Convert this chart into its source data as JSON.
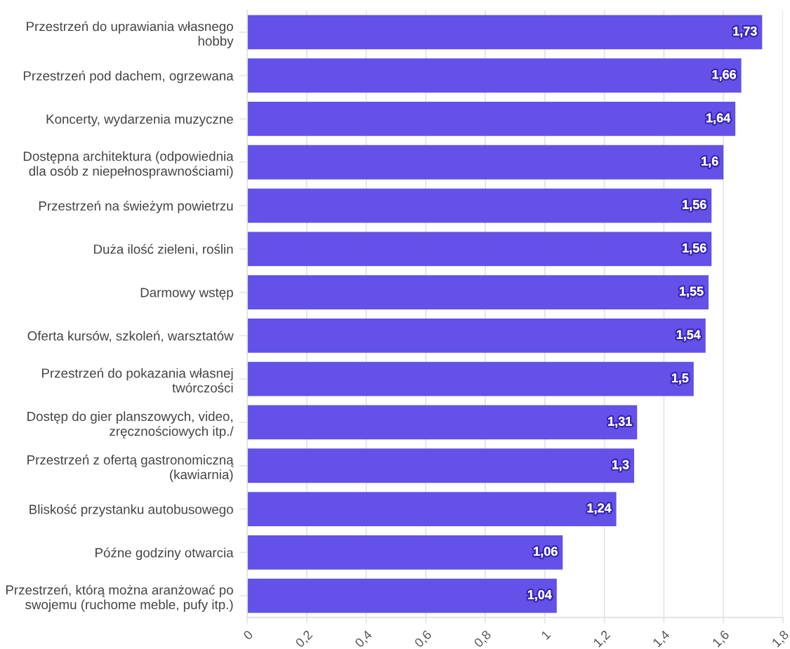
{
  "chart_data": {
    "type": "bar",
    "orientation": "horizontal",
    "categories": [
      "Przestrzeń do uprawiania własnego\nhobby",
      "Przestrzeń pod dachem, ogrzewana",
      "Koncerty, wydarzenia muzyczne",
      "Dostępna architektura (odpowiednia\ndla osób z niepełnosprawnościami)",
      "Przestrzeń na świeżym powietrzu",
      "Duża ilość zieleni, roślin",
      "Darmowy wstęp",
      "Oferta kursów, szkoleń, warsztatów",
      "Przestrzeń do pokazania własnej\ntwórczości",
      "Dostęp do gier planszowych, video,\nzręcznościowych itp./",
      "Przestrzeń z ofertą gastronomiczną\n(kawiarnia)",
      "Bliskość przystanku autobusowego",
      "Późne godziny otwarcia",
      "Przestrzeń, którą można aranżować po\nswojemu (ruchome meble, pufy itp.)"
    ],
    "values": [
      1.73,
      1.66,
      1.64,
      1.6,
      1.56,
      1.56,
      1.55,
      1.54,
      1.5,
      1.31,
      1.3,
      1.24,
      1.06,
      1.04
    ],
    "value_labels": [
      "1,73",
      "1,66",
      "1,64",
      "1,6",
      "1,56",
      "1,56",
      "1,55",
      "1,54",
      "1,5",
      "1,31",
      "1,3",
      "1,24",
      "1,06",
      "1,04"
    ],
    "color": "#6351e8",
    "xlim": [
      0,
      1.8
    ],
    "xticks": [
      0,
      {
        "value": 0.2,
        "label": "0,2"
      },
      {
        "value": 0.4,
        "label": "0,4"
      },
      {
        "value": 0.6,
        "label": "0,6"
      },
      {
        "value": 0.8,
        "label": "0,8"
      },
      1,
      {
        "value": 1.2,
        "label": "1,2"
      },
      {
        "value": 1.4,
        "label": "1,4"
      },
      {
        "value": 1.6,
        "label": "1,6"
      },
      {
        "value": 1.8,
        "label": "1,8"
      }
    ],
    "grid": "x"
  }
}
